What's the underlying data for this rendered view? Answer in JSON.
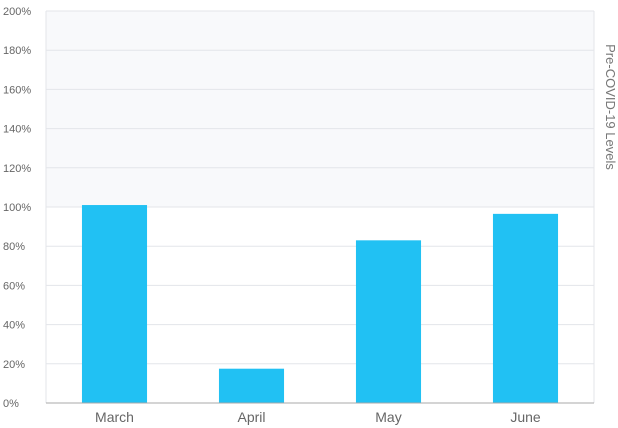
{
  "chart_data": {
    "type": "bar",
    "categories": [
      "March",
      "April",
      "May",
      "June"
    ],
    "values": [
      101,
      17.5,
      83,
      96.5
    ],
    "ylim": [
      0,
      200
    ],
    "yticks": [
      0,
      20,
      40,
      60,
      80,
      100,
      120,
      140,
      160,
      180,
      200
    ],
    "tick_suffix": "%",
    "y2label": "Pre-COVID-19 Levels",
    "reference_level": 100,
    "grid": true,
    "colors": {
      "bar": "#21c1f3",
      "above_reference_band": "#f8f9fb",
      "grid": "#e3e5ea",
      "axis": "#a8a8a8"
    }
  }
}
